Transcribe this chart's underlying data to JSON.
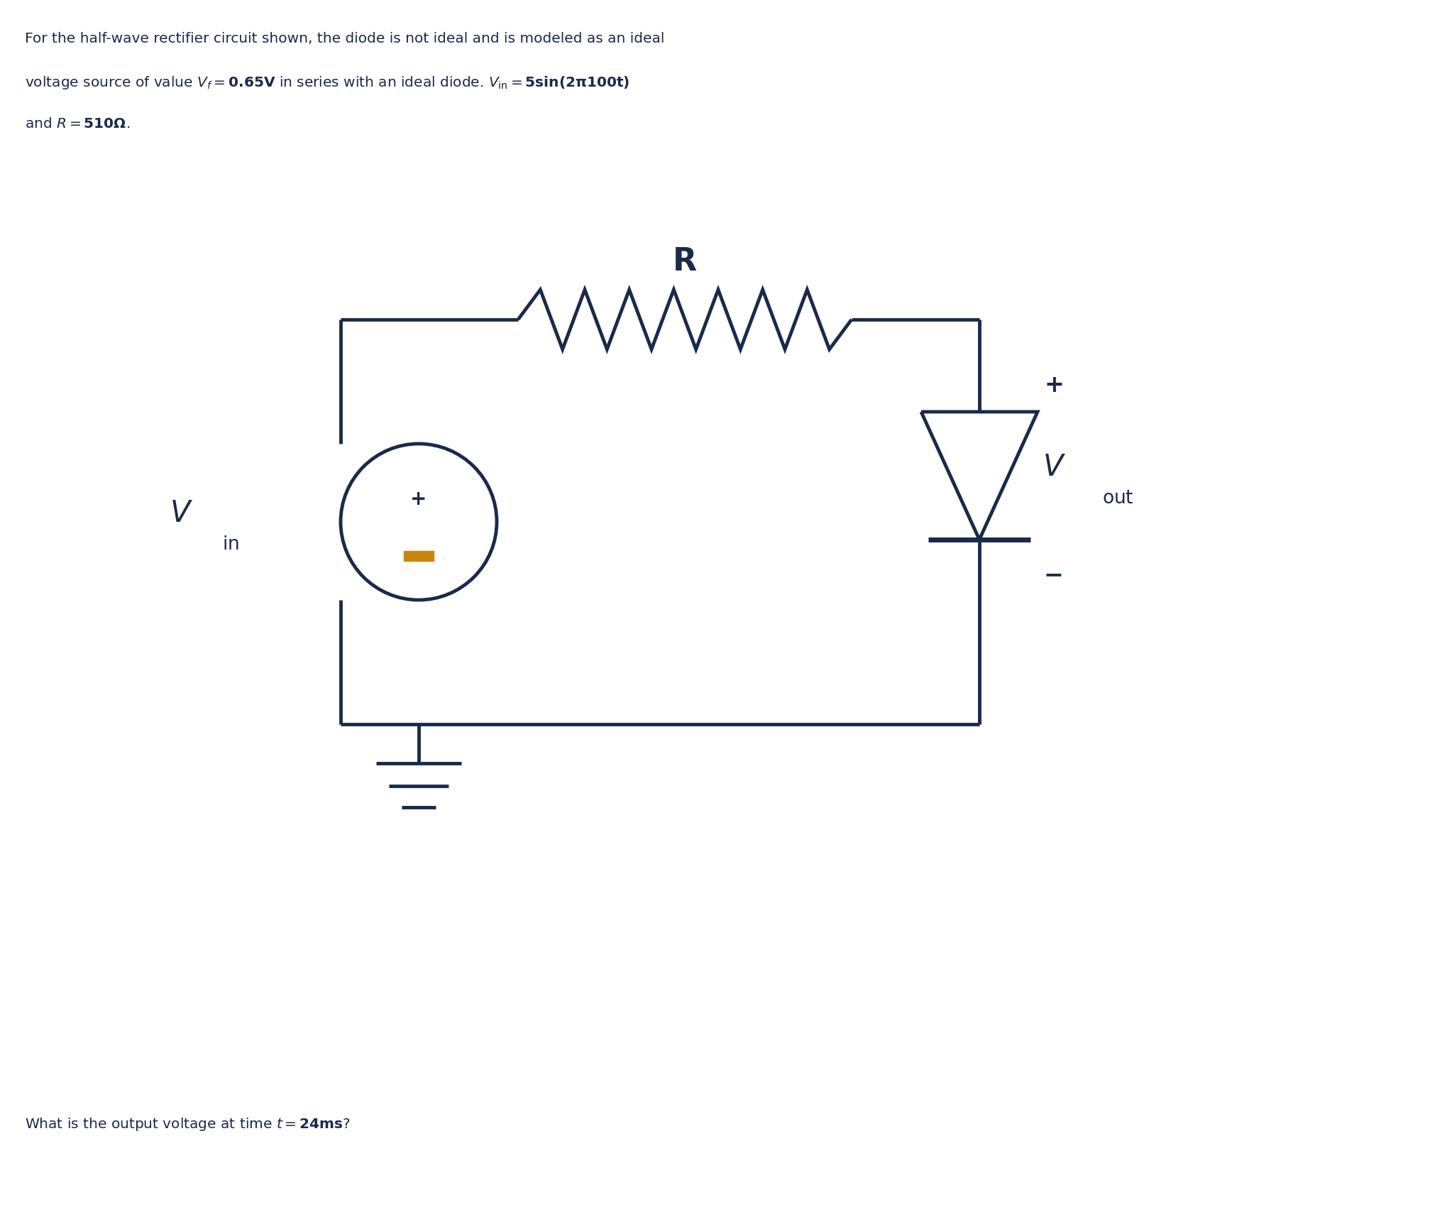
{
  "background_color": "#ffffff",
  "line_color": "#1a2a4a",
  "line_width": 3.5,
  "text_color": "#1a2a4a",
  "orange_color": "#c8860a",
  "plus_color": "#1a2a4a"
}
